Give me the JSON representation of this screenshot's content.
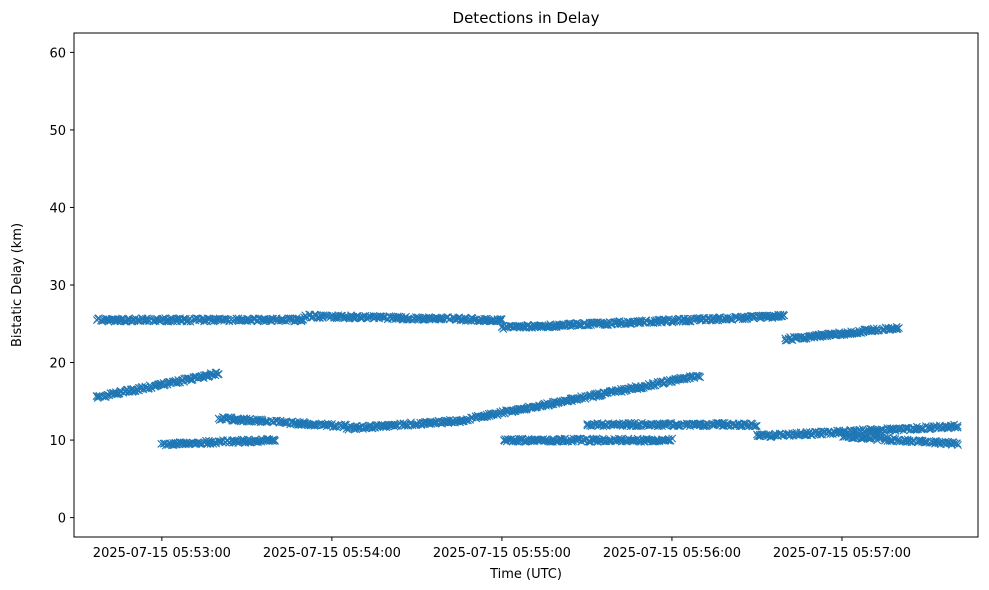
{
  "chart_data": {
    "type": "scatter",
    "title": "Detections in Delay",
    "xlabel": "Time (UTC)",
    "ylabel": "Bistatic Delay (km)",
    "xlim": [
      "2025-07-15 05:52:29",
      "2025-07-15 05:57:48"
    ],
    "ylim": [
      -2.5,
      62.5
    ],
    "xticks": [
      "2025-07-15 05:53:00",
      "2025-07-15 05:54:00",
      "2025-07-15 05:55:00",
      "2025-07-15 05:56:00",
      "2025-07-15 05:57:00"
    ],
    "yticks": [
      0,
      10,
      20,
      30,
      40,
      50,
      60
    ],
    "grid": false,
    "marker": "x",
    "color": "#1f77b4",
    "data_start": "2025-07-15 05:52:37",
    "data_end": "2025-07-15 05:57:41",
    "tracks": [
      {
        "start": "2025-07-15 05:52:37",
        "end": "2025-07-15 05:53:20",
        "y_start": 15.5,
        "y_end": 18.6
      },
      {
        "start": "2025-07-15 05:53:20",
        "end": "2025-07-15 05:54:05",
        "y_start": 12.8,
        "y_end": 11.8
      },
      {
        "start": "2025-07-15 05:54:05",
        "end": "2025-07-15 05:54:45",
        "y_start": 11.5,
        "y_end": 12.5
      },
      {
        "start": "2025-07-15 05:54:45",
        "end": "2025-07-15 05:56:10",
        "y_start": 12.5,
        "y_end": 18.3
      },
      {
        "start": "2025-07-15 05:55:30",
        "end": "2025-07-15 05:56:30",
        "y_start": 12.0,
        "y_end": 12.0
      },
      {
        "start": "2025-07-15 05:56:30",
        "end": "2025-07-15 05:57:41",
        "y_start": 10.5,
        "y_end": 11.8
      },
      {
        "start": "2025-07-15 05:57:00",
        "end": "2025-07-15 05:57:41",
        "y_start": 10.5,
        "y_end": 9.5
      },
      {
        "start": "2025-07-15 05:55:00",
        "end": "2025-07-15 05:56:00",
        "y_start": 10.0,
        "y_end": 10.0
      },
      {
        "start": "2025-07-15 05:53:00",
        "end": "2025-07-15 05:53:40",
        "y_start": 9.5,
        "y_end": 10.0
      },
      {
        "start": "2025-07-15 05:52:37",
        "end": "2025-07-15 05:53:50",
        "y_start": 25.5,
        "y_end": 25.5
      },
      {
        "start": "2025-07-15 05:53:50",
        "end": "2025-07-15 05:55:00",
        "y_start": 26.0,
        "y_end": 25.5
      },
      {
        "start": "2025-07-15 05:55:00",
        "end": "2025-07-15 05:56:40",
        "y_start": 24.5,
        "y_end": 26.0
      },
      {
        "start": "2025-07-15 05:56:40",
        "end": "2025-07-15 05:57:20",
        "y_start": 23.0,
        "y_end": 24.5
      }
    ],
    "point_count_estimate": 1800
  }
}
